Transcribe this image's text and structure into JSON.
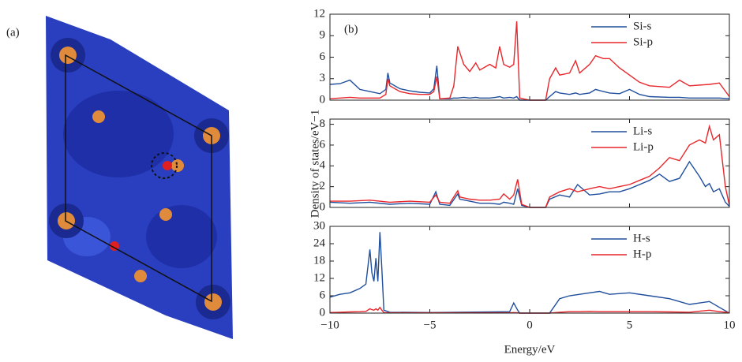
{
  "image_panel": {
    "label": "(a)"
  },
  "chart_data": [
    {
      "type": "line",
      "annotation": "(b)",
      "x": [
        -10,
        -9.5,
        -9,
        -8.5,
        -8,
        -7.5,
        -7.2,
        -7.1,
        -7,
        -6.5,
        -6,
        -5.5,
        -5,
        -4.8,
        -4.65,
        -4.5,
        -4,
        -3.8,
        -3.6,
        -3.3,
        -3,
        -2.7,
        -2.5,
        -2,
        -1.7,
        -1.5,
        -1.3,
        -1,
        -0.8,
        -0.65,
        -0.5,
        0,
        0.8,
        1,
        1.3,
        1.5,
        2,
        2.3,
        2.5,
        3,
        3.3,
        3.7,
        4,
        4.5,
        5,
        5.5,
        6,
        7,
        7.5,
        8,
        9,
        9.5,
        10
      ],
      "series": [
        {
          "name": "Si-s",
          "color": "#1f4e9c",
          "values": [
            2.2,
            2.3,
            2.8,
            1.5,
            1.2,
            0.9,
            1.5,
            3.8,
            2.4,
            1.6,
            1.3,
            1.1,
            1.0,
            1.6,
            4.8,
            0.2,
            0.2,
            0.3,
            0.3,
            0.4,
            0.3,
            0.4,
            0.3,
            0.3,
            0.4,
            0.5,
            0.3,
            0.4,
            0.3,
            0.5,
            0,
            0,
            0,
            0.5,
            1.2,
            1.0,
            0.8,
            1.0,
            0.8,
            1.0,
            1.5,
            1.2,
            1.0,
            0.9,
            1.5,
            0.8,
            0.5,
            0.4,
            0.4,
            0.3,
            0.3,
            0.3,
            0.2
          ]
        },
        {
          "name": "Si-p",
          "color": "#e8262b",
          "values": [
            0.2,
            0.3,
            0.4,
            0.3,
            0.3,
            0.3,
            0.8,
            3.0,
            2.0,
            1.2,
            0.9,
            0.8,
            0.8,
            1.2,
            3.3,
            0.2,
            0.3,
            2.0,
            7.5,
            5.0,
            4.0,
            5.2,
            4.2,
            5.0,
            4.5,
            7.5,
            5.0,
            4.6,
            5.0,
            11,
            0.3,
            0,
            0,
            3.0,
            4.5,
            3.5,
            3.8,
            5.5,
            3.8,
            5.0,
            6.2,
            5.8,
            5.8,
            4.5,
            3.5,
            2.5,
            2.0,
            1.8,
            2.8,
            2.0,
            2.2,
            2.4,
            0.5
          ]
        }
      ],
      "xlim": [
        -10,
        10
      ],
      "xticks": [
        -10,
        -5,
        0,
        5,
        10
      ],
      "xtick_labels": false,
      "ylim": [
        0,
        12
      ],
      "yticks": [
        0,
        3,
        6,
        9,
        12
      ],
      "legend": "upper right"
    },
    {
      "type": "line",
      "ylabel": "Density of states/eV−1",
      "x": [
        -10,
        -9,
        -8,
        -7,
        -6,
        -5,
        -4.7,
        -4.5,
        -4,
        -3.6,
        -3.5,
        -3,
        -2.5,
        -2,
        -1.5,
        -1.3,
        -1,
        -0.8,
        -0.6,
        -0.4,
        0,
        0.8,
        1,
        1.5,
        2,
        2.4,
        3,
        3.5,
        4,
        4.5,
        5,
        5.5,
        6,
        6.5,
        7,
        7.5,
        8,
        8.5,
        8.8,
        9,
        9.2,
        9.5,
        9.8,
        10
      ],
      "series": [
        {
          "name": "Li-s",
          "color": "#1f4e9c",
          "values": [
            0.5,
            0.4,
            0.5,
            0.3,
            0.4,
            0.3,
            1.5,
            0.3,
            0.2,
            1.3,
            0.8,
            0.6,
            0.4,
            0.4,
            0.3,
            0.5,
            0.4,
            0.3,
            1.8,
            0.2,
            0,
            0,
            0.8,
            1.2,
            1.0,
            2.2,
            1.2,
            1.3,
            1.5,
            1.5,
            1.8,
            2.2,
            2.6,
            3.2,
            2.5,
            2.8,
            4.4,
            3.0,
            2.0,
            2.3,
            1.5,
            1.8,
            0.5,
            0.1
          ]
        },
        {
          "name": "Li-p",
          "color": "#e8262b",
          "values": [
            0.6,
            0.6,
            0.7,
            0.5,
            0.6,
            0.5,
            1.2,
            0.5,
            0.4,
            1.6,
            1.0,
            0.8,
            0.7,
            0.7,
            0.8,
            1.3,
            0.8,
            1.2,
            2.7,
            0.3,
            0,
            0,
            1.0,
            1.5,
            1.8,
            1.5,
            1.8,
            2.0,
            1.8,
            2.0,
            2.2,
            2.6,
            3.0,
            3.8,
            4.8,
            4.5,
            6.0,
            6.5,
            6.2,
            7.8,
            6.5,
            7.0,
            2.0,
            0.2
          ]
        }
      ],
      "xlim": [
        -10,
        10
      ],
      "xticks": [
        -10,
        -5,
        0,
        5,
        10
      ],
      "xtick_labels": false,
      "ylim": [
        0,
        8.5
      ],
      "yticks": [
        0,
        2,
        4,
        6,
        8
      ],
      "legend": "upper right"
    },
    {
      "type": "line",
      "xlabel": "Energy/eV",
      "x": [
        -10,
        -9.5,
        -9,
        -8.5,
        -8.2,
        -8,
        -7.9,
        -7.8,
        -7.7,
        -7.6,
        -7.5,
        -7.4,
        -7.3,
        -7,
        -5,
        -1,
        -0.8,
        -0.6,
        -0.5,
        0,
        1,
        1.5,
        2,
        2.5,
        3,
        3.5,
        4,
        5,
        6,
        7,
        8,
        9,
        9.5,
        10
      ],
      "series": [
        {
          "name": "H-s",
          "color": "#1f4e9c",
          "values": [
            5.5,
            6.5,
            7,
            8.5,
            10,
            22,
            14,
            11,
            19,
            11,
            28,
            15,
            1,
            0.3,
            0.2,
            0.5,
            3.5,
            1,
            0,
            0,
            0,
            5,
            6,
            6.5,
            7,
            7.5,
            6.5,
            7,
            6,
            5,
            3,
            4,
            2,
            0
          ]
        },
        {
          "name": "H-p",
          "color": "#e8262b",
          "values": [
            0.2,
            0.3,
            0.4,
            0.5,
            0.6,
            1.5,
            1.2,
            1.0,
            1.5,
            1.0,
            2.0,
            1.0,
            0.2,
            0.1,
            0.1,
            0.1,
            0.2,
            0.1,
            0,
            0,
            0,
            0.3,
            0.5,
            0.5,
            0.6,
            0.5,
            0.5,
            0.5,
            0.5,
            0.4,
            0.3,
            1.0,
            0.5,
            0.2
          ]
        }
      ],
      "xlim": [
        -10,
        10
      ],
      "xticks": [
        {
          "value": -10,
          "label": "−10"
        },
        {
          "value": -5,
          "label": "−5"
        },
        0,
        5,
        10
      ],
      "ylim": [
        0,
        30
      ],
      "yticks": [
        0,
        6,
        12,
        18,
        24,
        30
      ],
      "legend": "upper right"
    }
  ]
}
